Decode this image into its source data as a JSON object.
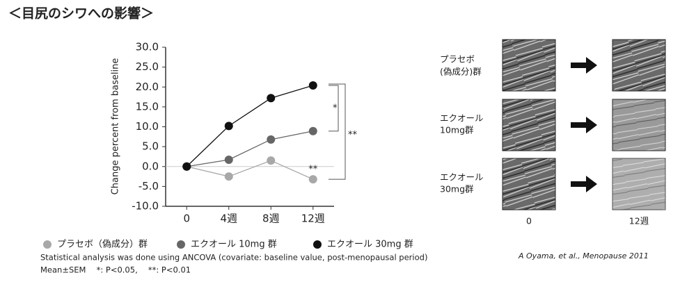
{
  "chart_data": {
    "type": "line",
    "title": "＜目尻のシワへの影響＞",
    "y_label": "Change percent from baseline",
    "categories": [
      "0",
      "4週",
      "8週",
      "12週"
    ],
    "series": [
      {
        "name": "プラセボ（偽成分）群",
        "color": "#a8a8a8",
        "values": [
          0,
          -2.5,
          1.5,
          -3.2
        ]
      },
      {
        "name": "エクオール 10mg 群",
        "color": "#666666",
        "values": [
          0,
          1.7,
          6.8,
          8.9
        ]
      },
      {
        "name": "エクオール 30mg 群",
        "color": "#111111",
        "values": [
          0,
          10.2,
          17.2,
          20.4
        ]
      }
    ],
    "ylim": [
      -10,
      30
    ],
    "yticks": [
      {
        "value": 30,
        "label": "30.0"
      },
      {
        "value": 25,
        "label": "25.0"
      },
      {
        "value": 20,
        "label": "20.0"
      },
      {
        "value": 15,
        "label": "15.0"
      },
      {
        "value": 10,
        "label": "10.0"
      },
      {
        "value": 5,
        "label": "5.0"
      },
      {
        "value": 0,
        "label": "0.0"
      },
      {
        "value": -5,
        "label": "-5.0"
      },
      {
        "value": -10,
        "label": "-10.0"
      }
    ],
    "annotations": [
      "*",
      "**",
      "**"
    ],
    "notes": [
      "Statistical analysis was done using ANCOVA (covariate: baseline value, post-menopausal period)",
      "Mean±SEM　 *: P<0.05,　 **: P<0.01"
    ],
    "citation": "A Oyama, et al.,  Menopause 2011"
  },
  "photos": {
    "rows": [
      [
        "プラセボ",
        "(偽成分)群"
      ],
      [
        "エクオール",
        "10mg群"
      ],
      [
        "エクオール",
        "30mg群"
      ]
    ],
    "columns": [
      "0",
      "12週"
    ]
  }
}
